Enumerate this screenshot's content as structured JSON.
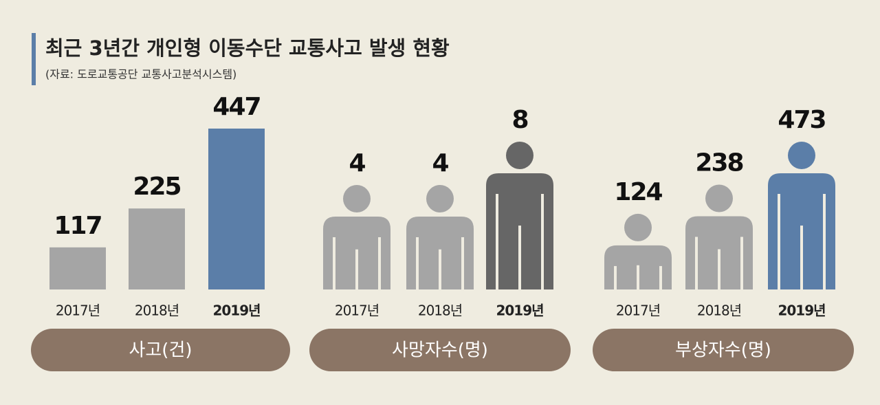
{
  "title": "최근 3년간 개인형 이동수단 교통사고 발생 현황",
  "source": "(자료: 도로교통공단 교통사고분석시스템)",
  "chart_data": [
    {
      "type": "bar",
      "label": "사고(건)",
      "categories": [
        "2017년",
        "2018년",
        "2019년"
      ],
      "values": [
        117,
        225,
        447
      ],
      "colors": [
        "#a5a5a5",
        "#a5a5a5",
        "#5b7ea8"
      ]
    },
    {
      "type": "pictogram",
      "label": "사망자수(명)",
      "categories": [
        "2017년",
        "2018년",
        "2019년"
      ],
      "values": [
        4,
        4,
        8
      ],
      "colors": [
        "#a5a5a5",
        "#a5a5a5",
        "#666666"
      ]
    },
    {
      "type": "pictogram",
      "label": "부상자수(명)",
      "categories": [
        "2017년",
        "2018년",
        "2019년"
      ],
      "values": [
        124,
        238,
        473
      ],
      "colors": [
        "#a5a5a5",
        "#a5a5a5",
        "#5b7ea8"
      ]
    }
  ]
}
